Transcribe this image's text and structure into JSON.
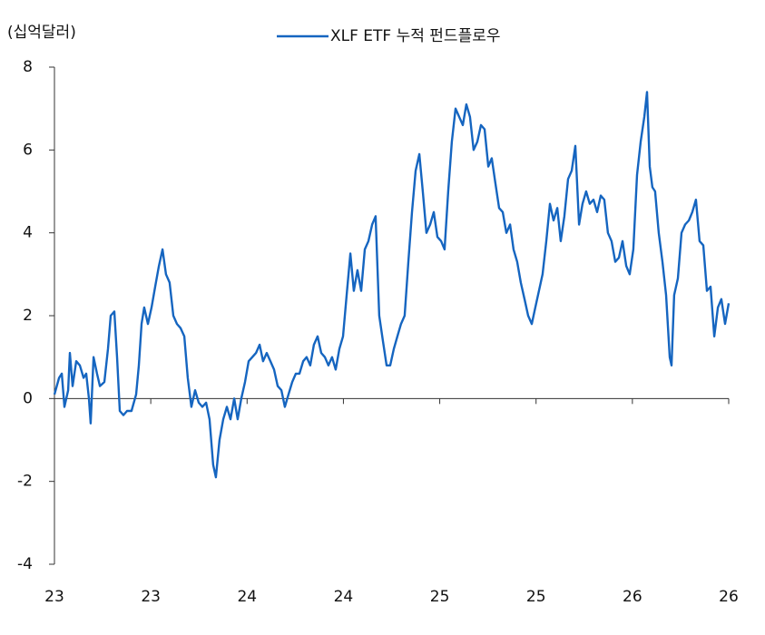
{
  "chart_data": {
    "type": "line",
    "y_axis_label": "(십억달러)",
    "series": [
      {
        "name": "XLF ETF 누적 펀드플로우",
        "color": "#1565c0",
        "x": [
          23.0,
          23.024,
          23.038,
          23.052,
          23.071,
          23.08,
          23.094,
          23.113,
          23.132,
          23.151,
          23.165,
          23.179,
          23.188,
          23.203,
          23.221,
          23.236,
          23.259,
          23.278,
          23.292,
          23.311,
          23.325,
          23.339,
          23.358,
          23.377,
          23.4,
          23.424,
          23.438,
          23.452,
          23.466,
          23.485,
          23.504,
          23.523,
          23.542,
          23.561,
          23.579,
          23.598,
          23.617,
          23.636,
          23.655,
          23.674,
          23.692,
          23.711,
          23.73,
          23.749,
          23.768,
          23.787,
          23.805,
          23.824,
          23.838,
          23.857,
          23.876,
          23.895,
          23.914,
          23.933,
          23.951,
          23.97,
          23.989,
          24.008,
          24.027,
          24.046,
          24.065,
          24.083,
          24.102,
          24.121,
          24.14,
          24.159,
          24.178,
          24.196,
          24.215,
          24.234,
          24.253,
          24.272,
          24.291,
          24.309,
          24.328,
          24.347,
          24.366,
          24.385,
          24.404,
          24.422,
          24.441,
          24.46,
          24.479,
          24.498,
          24.517,
          24.536,
          24.554,
          24.573,
          24.592,
          24.611,
          24.63,
          24.649,
          24.667,
          24.686,
          24.705,
          24.724,
          24.743,
          24.762,
          24.78,
          24.799,
          24.818,
          24.837,
          24.856,
          24.875,
          24.894,
          24.912,
          24.931,
          24.95,
          24.969,
          24.988,
          25.007,
          25.025,
          25.044,
          25.063,
          25.082,
          25.101,
          25.12,
          25.138,
          25.157,
          25.176,
          25.195,
          25.214,
          25.233,
          25.252,
          25.27,
          25.289,
          25.308,
          25.327,
          25.346,
          25.365,
          25.383,
          25.402,
          25.421,
          25.44,
          25.459,
          25.478,
          25.496,
          25.515,
          25.534,
          25.553,
          25.572,
          25.591,
          25.61,
          25.628,
          25.647,
          25.666,
          25.685,
          25.704,
          25.723,
          25.741,
          25.76,
          25.779,
          25.798,
          25.817,
          25.836,
          25.854,
          25.873,
          25.892,
          25.911,
          25.93,
          25.949,
          25.968,
          25.986,
          26.005,
          26.024,
          26.043,
          26.062,
          26.076,
          26.09,
          26.104,
          26.118,
          26.137,
          26.156,
          26.175,
          26.194,
          26.203,
          26.217,
          26.236,
          26.255,
          26.274,
          26.293,
          26.311,
          26.33,
          26.349,
          26.368,
          26.387,
          26.406,
          26.425,
          26.444,
          26.462,
          26.481,
          26.5
        ],
        "values": [
          0.1,
          0.5,
          0.6,
          -0.2,
          0.2,
          1.1,
          0.3,
          0.9,
          0.8,
          0.5,
          0.6,
          0.0,
          -0.6,
          1.0,
          0.6,
          0.3,
          0.4,
          1.2,
          2.0,
          2.1,
          1.0,
          -0.3,
          -0.4,
          -0.3,
          -0.3,
          0.1,
          0.8,
          1.8,
          2.2,
          1.8,
          2.2,
          2.7,
          3.2,
          3.6,
          3.0,
          2.8,
          2.0,
          1.8,
          1.7,
          1.5,
          0.5,
          -0.2,
          0.2,
          -0.1,
          -0.2,
          -0.1,
          -0.5,
          -1.6,
          -1.9,
          -1.0,
          -0.5,
          -0.2,
          -0.5,
          0.0,
          -0.5,
          0.0,
          0.4,
          0.9,
          1.0,
          1.1,
          1.3,
          0.9,
          1.1,
          0.9,
          0.7,
          0.3,
          0.2,
          -0.2,
          0.1,
          0.4,
          0.6,
          0.6,
          0.9,
          1.0,
          0.8,
          1.3,
          1.5,
          1.1,
          1.0,
          0.8,
          1.0,
          0.7,
          1.2,
          1.5,
          2.5,
          3.5,
          2.6,
          3.1,
          2.6,
          3.6,
          3.8,
          4.2,
          4.4,
          2.0,
          1.4,
          0.8,
          0.8,
          1.2,
          1.5,
          1.8,
          2.0,
          3.3,
          4.5,
          5.5,
          5.9,
          5.0,
          4.0,
          4.2,
          4.5,
          3.9,
          3.8,
          3.6,
          5.0,
          6.2,
          7.0,
          6.8,
          6.6,
          7.1,
          6.8,
          6.0,
          6.2,
          6.6,
          6.5,
          5.6,
          5.8,
          5.2,
          4.6,
          4.5,
          4.0,
          4.2,
          3.6,
          3.3,
          2.8,
          2.4,
          2.0,
          1.8,
          2.2,
          2.6,
          3.0,
          3.8,
          4.7,
          4.3,
          4.6,
          3.8,
          4.4,
          5.3,
          5.5,
          6.1,
          4.2,
          4.7,
          5.0,
          4.7,
          4.8,
          4.5,
          4.9,
          4.8,
          4.0,
          3.8,
          3.3,
          3.4,
          3.8,
          3.2,
          3.0,
          3.6,
          5.4,
          6.2,
          6.8,
          7.4,
          5.6,
          5.1,
          5.0,
          4.0,
          3.3,
          2.5,
          1.0,
          0.8,
          2.5,
          2.9,
          4.0,
          4.2,
          4.3,
          4.5,
          4.8,
          3.8,
          3.7,
          2.6,
          2.7,
          1.5,
          2.2,
          2.4,
          1.8,
          2.3
        ]
      }
    ],
    "xlim": [
      23,
      26.5
    ],
    "xticks": [
      23,
      {
        "value": 23.5,
        "label": "23"
      },
      24,
      {
        "value": 24.5,
        "label": "24"
      },
      25,
      {
        "value": 25.5,
        "label": "25"
      },
      26,
      {
        "value": 26.5,
        "label": "26"
      }
    ],
    "ylim": [
      -4,
      8
    ],
    "yticks": [
      -4,
      -2,
      0,
      2,
      4,
      6,
      8
    ],
    "legend": "top"
  }
}
